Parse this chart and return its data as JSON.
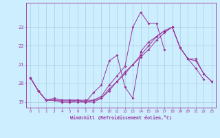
{
  "xlabel": "Windchill (Refroidissement éolien,°C)",
  "bg_color": "#cceeff",
  "line_color": "#993399",
  "grid_color": "#aaccdd",
  "xlim": [
    -0.5,
    23.5
  ],
  "ylim": [
    18.7,
    24.3
  ],
  "yticks": [
    19,
    20,
    21,
    22,
    23
  ],
  "xticks": [
    0,
    1,
    2,
    3,
    4,
    5,
    6,
    7,
    8,
    9,
    10,
    11,
    12,
    13,
    14,
    15,
    16,
    17,
    18,
    19,
    20,
    21,
    22,
    23
  ],
  "series": [
    [
      20.3,
      19.6,
      19.1,
      19.1,
      19.1,
      19.1,
      19.1,
      19.1,
      19.1,
      19.3,
      19.9,
      20.4,
      20.9,
      23.0,
      23.8,
      23.2,
      23.2,
      21.8,
      null,
      null,
      null,
      null,
      null,
      null
    ],
    [
      20.3,
      19.6,
      19.1,
      19.2,
      19.1,
      19.1,
      19.1,
      19.0,
      19.5,
      19.9,
      21.2,
      21.5,
      19.8,
      19.2,
      21.7,
      22.2,
      22.5,
      22.8,
      23.0,
      21.9,
      21.3,
      20.8,
      20.2,
      null
    ],
    [
      20.3,
      19.6,
      19.1,
      19.1,
      19.0,
      19.0,
      19.1,
      19.0,
      19.0,
      19.2,
      19.6,
      20.1,
      20.5,
      21.0,
      21.5,
      22.0,
      22.5,
      22.8,
      23.0,
      21.9,
      21.3,
      21.3,
      20.5,
      20.1
    ],
    [
      20.3,
      19.6,
      19.1,
      19.1,
      19.0,
      19.0,
      19.0,
      19.0,
      19.1,
      19.2,
      19.7,
      20.1,
      20.6,
      21.0,
      21.4,
      21.8,
      22.3,
      22.7,
      23.0,
      21.9,
      21.3,
      21.2,
      20.5,
      20.1
    ]
  ]
}
